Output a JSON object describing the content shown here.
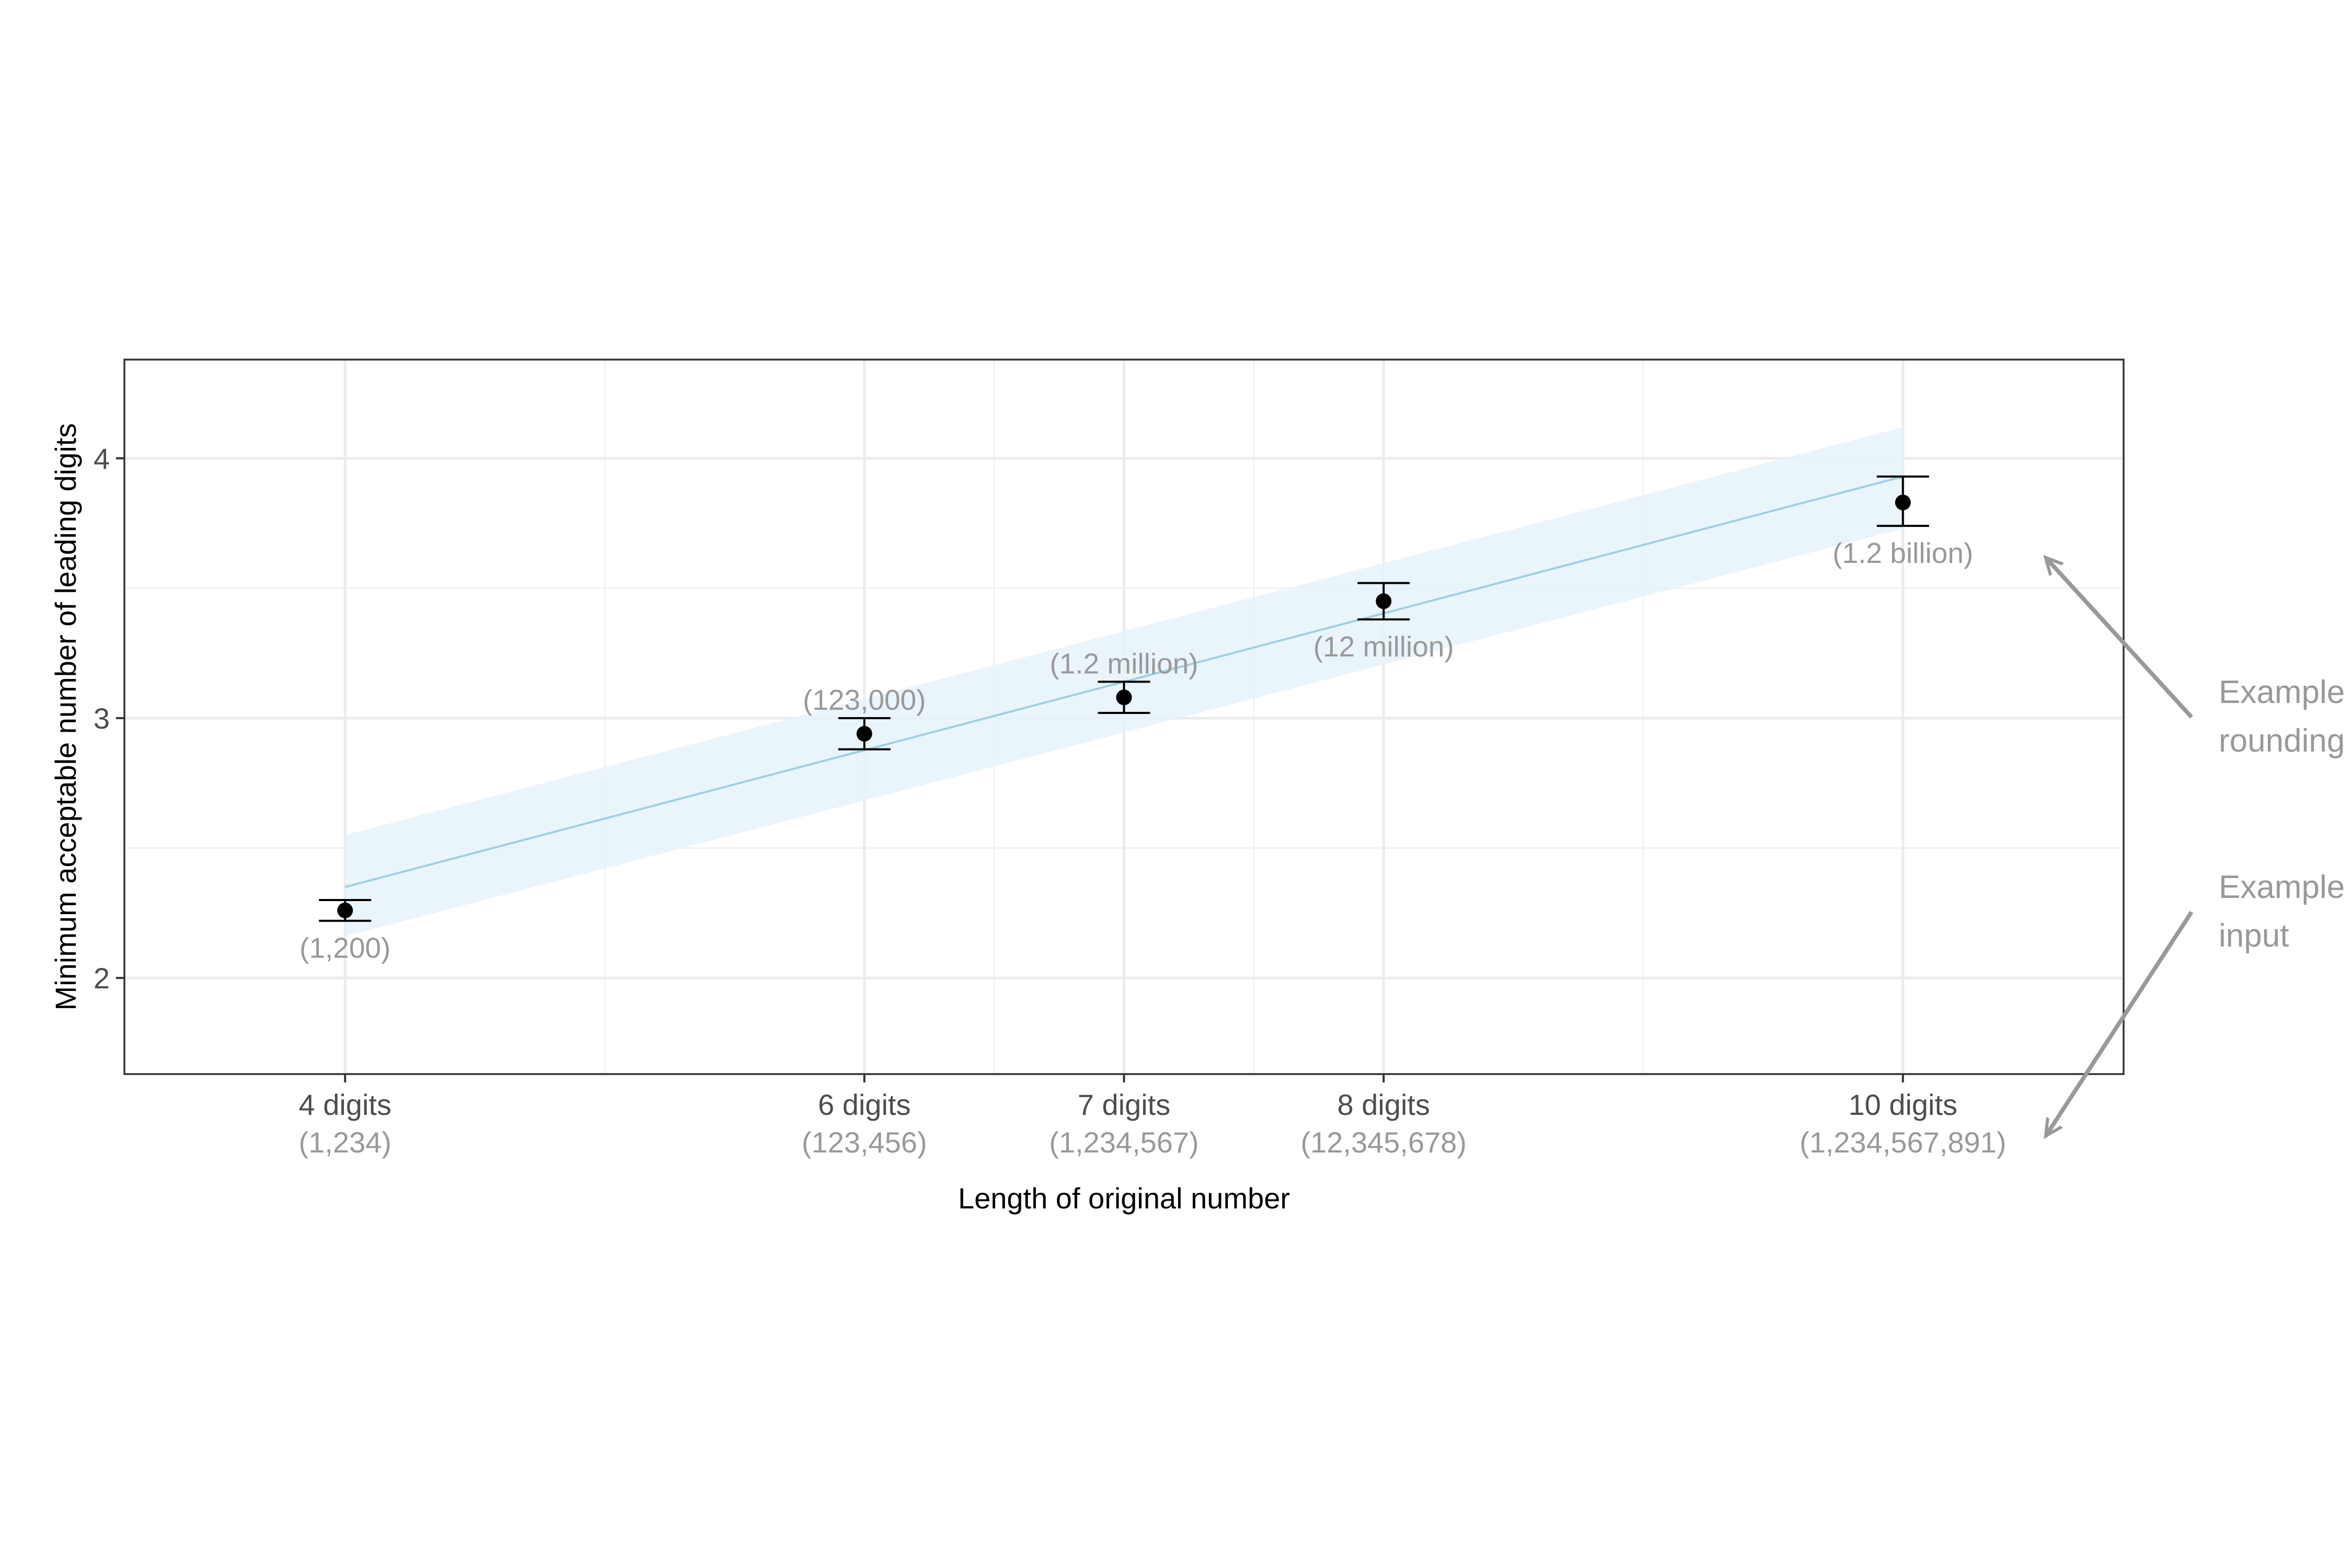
{
  "chart_data": {
    "type": "scatter",
    "title": "",
    "xlabel": "Length of original number",
    "ylabel": "Minimum acceptable number of leading digits",
    "xlim": [
      3.15,
      10.85
    ],
    "ylim": [
      1.63,
      4.38
    ],
    "grid": true,
    "x_ticks": [
      {
        "x": 4,
        "label": "4 digits",
        "sublabel": "(1,234)"
      },
      {
        "x": 6,
        "label": "6 digits",
        "sublabel": "(123,456)"
      },
      {
        "x": 7,
        "label": "7 digits",
        "sublabel": "(1,234,567)"
      },
      {
        "x": 8,
        "label": "8 digits",
        "sublabel": "(12,345,678)"
      },
      {
        "x": 10,
        "label": "10 digits",
        "sublabel": "(1,234,567,891)"
      }
    ],
    "y_ticks": [
      2,
      3,
      4
    ],
    "points": [
      {
        "x": 4,
        "y": 2.26,
        "lower": 2.22,
        "upper": 2.3,
        "label": "(1,200)",
        "label_position": "below"
      },
      {
        "x": 6,
        "y": 2.94,
        "lower": 2.88,
        "upper": 3.0,
        "label": "(123,000)",
        "label_position": "above"
      },
      {
        "x": 7,
        "y": 3.08,
        "lower": 3.02,
        "upper": 3.14,
        "label": "(1.2 million)",
        "label_position": "above"
      },
      {
        "x": 8,
        "y": 3.45,
        "lower": 3.38,
        "upper": 3.52,
        "label": "(12 million)",
        "label_position": "below"
      },
      {
        "x": 10,
        "y": 3.83,
        "lower": 3.74,
        "upper": 3.93,
        "label": "(1.2 billion)",
        "label_position": "below"
      }
    ],
    "trend": {
      "x": [
        4,
        10
      ],
      "y": [
        2.35,
        3.93
      ],
      "ci_lower": [
        2.16,
        3.73
      ],
      "ci_upper": [
        2.55,
        4.12
      ]
    },
    "annotations": [
      {
        "lines": [
          "Example",
          "rounding"
        ],
        "points_to": "point labels"
      },
      {
        "lines": [
          "Example",
          "input"
        ],
        "points_to": "x-axis sublabels"
      }
    ],
    "colors": {
      "trend_line": "#9fcfdf",
      "ci_band": "#e6f2fa",
      "points": "#000000",
      "annotation": "#999999"
    }
  }
}
